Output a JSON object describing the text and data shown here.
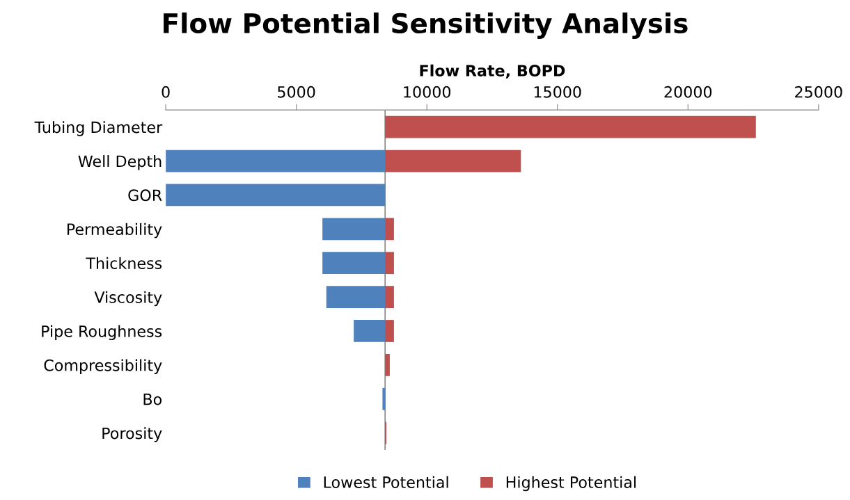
{
  "chart_data": {
    "type": "bar",
    "orientation": "horizontal",
    "title": "Flow Potential Sensitivity Analysis",
    "xlabel": "Flow Rate, BOPD",
    "categories": [
      "Tubing Diameter",
      "Well Depth",
      "GOR",
      "Permeability",
      "Thickness",
      "Viscosity",
      "Pipe Roughness",
      "Compressibility",
      "Bo",
      "Porosity"
    ],
    "series": [
      {
        "name": "Lowest Potential",
        "color": "#4f81bd",
        "base": [
          null,
          0,
          0,
          6000,
          6000,
          6150,
          7200,
          null,
          8300,
          null
        ],
        "values": [
          null,
          8400,
          8400,
          2400,
          2400,
          2250,
          1200,
          null,
          100,
          null
        ]
      },
      {
        "name": "Highest Potential",
        "color": "#c0504d",
        "base": [
          8400,
          8400,
          null,
          8400,
          8400,
          8400,
          8400,
          8400,
          null,
          8400
        ],
        "values": [
          14200,
          5200,
          null,
          340,
          340,
          340,
          340,
          180,
          null,
          50
        ]
      }
    ],
    "xlim": [
      0,
      25000
    ],
    "xticks": [
      0,
      5000,
      10000,
      15000,
      20000,
      25000
    ],
    "ref_lines": [
      {
        "axis": "x",
        "value": 8400,
        "color": "#888888"
      }
    ],
    "grid": false,
    "legend": "bottom"
  }
}
